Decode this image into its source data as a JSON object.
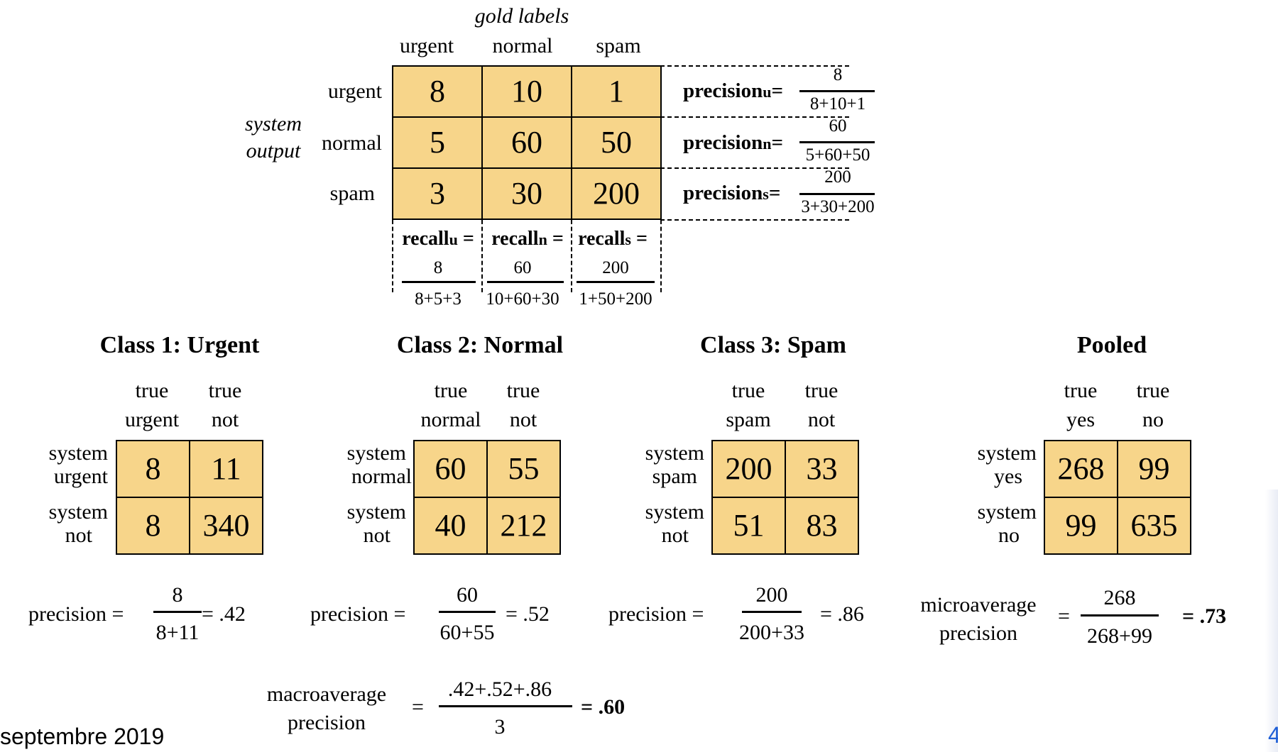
{
  "matrix": {
    "gold_labels": "gold labels",
    "system_output": [
      "system",
      "output"
    ],
    "col_headers": [
      "urgent",
      "normal",
      "spam"
    ],
    "row_headers": [
      "urgent",
      "normal",
      "spam"
    ],
    "values": [
      [
        "8",
        "10",
        "1"
      ],
      [
        "5",
        "60",
        "50"
      ],
      [
        "3",
        "30",
        "200"
      ]
    ],
    "precision": [
      {
        "label": "precision",
        "sub": "u",
        "eq": "=",
        "num": "8",
        "den": "8+10+1"
      },
      {
        "label": "precision",
        "sub": "n",
        "eq": "=",
        "num": "60",
        "den": "5+60+50"
      },
      {
        "label": "precision",
        "sub": "s",
        "eq": "=",
        "num": "200",
        "den": "3+30+200"
      }
    ],
    "recall": [
      {
        "label": "recall",
        "sub": "u",
        "eq": "=",
        "num": "8",
        "den": "8+5+3"
      },
      {
        "label": "recall",
        "sub": "n",
        "eq": "=",
        "num": "60",
        "den": "10+60+30"
      },
      {
        "label": "recall",
        "sub": "s",
        "eq": "=",
        "num": "200",
        "den": "1+50+200"
      }
    ]
  },
  "classes": [
    {
      "title": "Class 1: Urgent",
      "col1": [
        "true",
        "urgent"
      ],
      "col2": [
        "true",
        "not"
      ],
      "row1": [
        "system",
        "urgent"
      ],
      "row2": [
        "system",
        "not"
      ],
      "values": [
        [
          "8",
          "11"
        ],
        [
          "8",
          "340"
        ]
      ],
      "prec_label": "precision =",
      "num": "8",
      "den": "8+11",
      "result": "= .42"
    },
    {
      "title": "Class 2: Normal",
      "col1": [
        "true",
        "normal"
      ],
      "col2": [
        "true",
        "not"
      ],
      "row1": [
        "system",
        "normal"
      ],
      "row2": [
        "system",
        "not"
      ],
      "values": [
        [
          "60",
          "55"
        ],
        [
          "40",
          "212"
        ]
      ],
      "prec_label": "precision =",
      "num": "60",
      "den": "60+55",
      "result": "= .52"
    },
    {
      "title": "Class 3: Spam",
      "col1": [
        "true",
        "spam"
      ],
      "col2": [
        "true",
        "not"
      ],
      "row1": [
        "system",
        "spam"
      ],
      "row2": [
        "system",
        "not"
      ],
      "values": [
        [
          "200",
          "33"
        ],
        [
          "51",
          "83"
        ]
      ],
      "prec_label": "precision =",
      "num": "200",
      "den": "200+33",
      "result": "= .86"
    },
    {
      "title": "Pooled",
      "col1": [
        "true",
        "yes"
      ],
      "col2": [
        "true",
        "no"
      ],
      "row1": [
        "system",
        "yes"
      ],
      "row2": [
        "system",
        "no"
      ],
      "values": [
        [
          "268",
          "99"
        ],
        [
          "99",
          "635"
        ]
      ],
      "prec_label": "",
      "num": "268",
      "den": "268+99",
      "result": "= .73"
    }
  ],
  "micro": {
    "label": [
      "microaverage",
      "precision"
    ],
    "eq": "="
  },
  "macro": {
    "label": [
      "macroaverage",
      "precision"
    ],
    "eq": "=",
    "num": ".42+.52+.86",
    "den": "3",
    "result": "= .60"
  },
  "footer": {
    "date": "septembre 2019",
    "page": "4"
  }
}
